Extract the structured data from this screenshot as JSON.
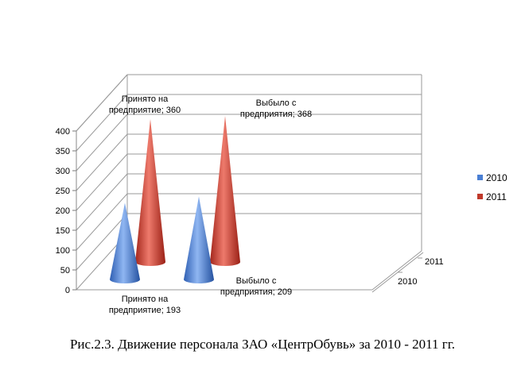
{
  "chart_data": {
    "type": "bar",
    "subtype": "3d-cone",
    "categories": [
      [
        "Принято на",
        "предприятие"
      ],
      [
        "Выбыло с",
        "предприятия"
      ]
    ],
    "series": [
      {
        "name": "2010",
        "values": [
          193,
          209
        ],
        "color": "#4a7fd4"
      },
      {
        "name": "2011",
        "values": [
          360,
          368
        ],
        "color": "#c0392b"
      }
    ],
    "depth_axis": [
      "2010",
      "2011"
    ],
    "ylim": [
      0,
      400
    ],
    "yticks": [
      "0",
      "50",
      "100",
      "150",
      "200",
      "250",
      "300",
      "350",
      "400"
    ],
    "grid": true,
    "legend": "right"
  },
  "caption": "Рис.2.3. Движение персонала ЗАО «ЦентрОбувь»  за 2010 - 2011 гг."
}
